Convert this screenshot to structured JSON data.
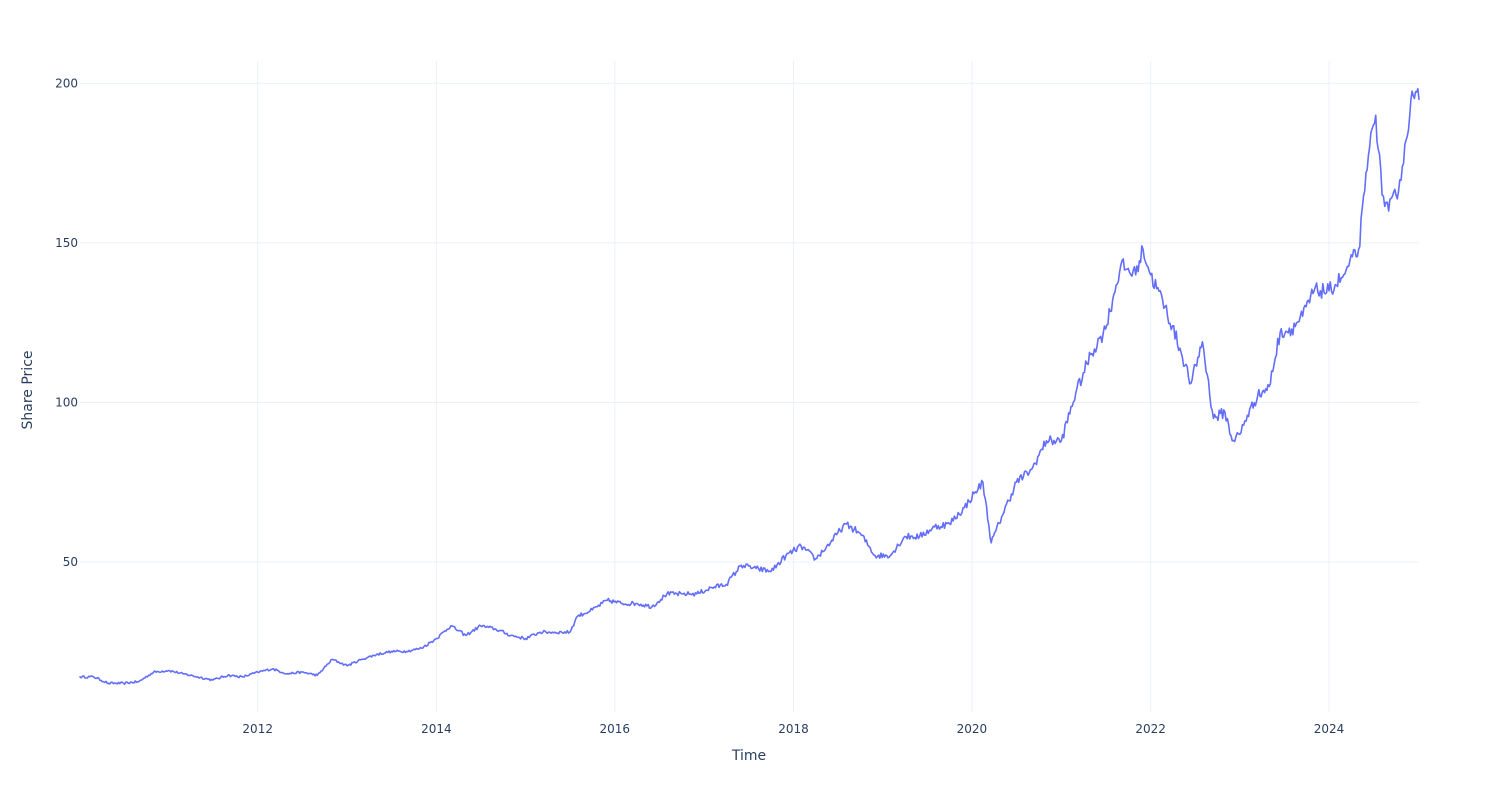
{
  "chart_data": {
    "type": "line",
    "title": "",
    "xlabel": "Time",
    "ylabel": "Share Price",
    "x_type": "date",
    "xlim": [
      "2010-01-04",
      "2025-01-03"
    ],
    "ylim": [
      3,
      207
    ],
    "x_ticks": [
      "2012",
      "2014",
      "2016",
      "2018",
      "2020",
      "2022",
      "2024"
    ],
    "y_ticks": [
      "50",
      "100",
      "150",
      "200"
    ],
    "grid": true,
    "legend": "none",
    "colors": {
      "line": "#636efa",
      "grid": "#ebf0f8",
      "text": "#2a3f5f",
      "background": "#ffffff"
    },
    "series": [
      {
        "x": [
          "2010-01-04",
          "2010-03-01",
          "2010-05-01",
          "2010-07-01",
          "2010-09-01",
          "2010-11-01",
          "2011-01-01",
          "2011-03-01",
          "2011-05-01",
          "2011-07-01",
          "2011-09-01",
          "2011-11-01",
          "2012-01-01",
          "2012-03-01",
          "2012-05-01",
          "2012-07-01",
          "2012-09-01",
          "2012-11-01",
          "2013-01-01",
          "2013-03-01",
          "2013-05-01",
          "2013-07-01",
          "2013-09-01",
          "2013-11-01",
          "2014-01-01",
          "2014-03-01",
          "2014-05-01",
          "2014-07-01",
          "2014-09-01",
          "2014-11-01",
          "2015-01-01",
          "2015-03-01",
          "2015-05-01",
          "2015-07-01",
          "2015-08-01",
          "2015-10-01",
          "2015-12-01",
          "2016-02-01",
          "2016-04-01",
          "2016-06-01",
          "2016-08-01",
          "2016-10-01",
          "2016-12-01",
          "2017-02-01",
          "2017-04-01",
          "2017-06-01",
          "2017-08-01",
          "2017-10-01",
          "2017-12-01",
          "2018-02-01",
          "2018-04-01",
          "2018-06-01",
          "2018-08-01",
          "2018-10-01",
          "2018-12-01",
          "2019-02-01",
          "2019-04-01",
          "2019-06-01",
          "2019-08-01",
          "2019-10-01",
          "2019-12-01",
          "2020-01-15",
          "2020-02-15",
          "2020-03-20",
          "2020-05-01",
          "2020-07-01",
          "2020-09-01",
          "2020-11-01",
          "2021-01-01",
          "2021-03-01",
          "2021-05-01",
          "2021-07-01",
          "2021-09-01",
          "2021-11-01",
          "2021-12-01",
          "2022-01-01",
          "2022-03-01",
          "2022-05-01",
          "2022-06-15",
          "2022-08-01",
          "2022-09-15",
          "2022-11-01",
          "2022-12-01",
          "2023-01-01",
          "2023-02-01",
          "2023-03-15",
          "2023-05-01",
          "2023-06-15",
          "2023-08-01",
          "2023-09-15",
          "2023-11-01",
          "2024-01-01",
          "2024-03-01",
          "2024-05-01",
          "2024-06-15",
          "2024-07-10",
          "2024-08-05",
          "2024-09-01",
          "2024-10-01",
          "2024-11-01",
          "2024-12-01",
          "2025-01-03"
        ],
        "y": [
          14,
          14,
          12,
          12,
          12.5,
          15.5,
          16,
          15,
          14,
          13,
          14.5,
          14,
          15.5,
          16.5,
          15,
          15.5,
          14.5,
          19.5,
          17.5,
          19.5,
          21,
          22,
          22,
          23,
          26,
          30,
          27,
          30,
          29,
          27,
          26,
          28,
          28,
          28,
          33,
          35,
          38,
          37,
          37,
          36,
          40,
          40,
          40,
          42,
          43,
          49,
          48,
          47,
          52,
          55,
          51,
          56,
          62,
          59,
          52,
          52,
          58,
          58,
          61,
          62,
          67,
          72,
          75,
          56,
          64,
          75,
          79,
          88,
          88,
          103,
          115,
          123,
          143,
          140,
          148,
          140,
          130,
          117,
          106,
          119,
          95,
          97,
          88,
          90,
          96,
          102,
          105,
          122,
          123,
          127,
          135,
          135,
          140,
          148,
          180,
          190,
          165,
          160,
          165,
          175,
          195,
          195
        ]
      }
    ]
  }
}
